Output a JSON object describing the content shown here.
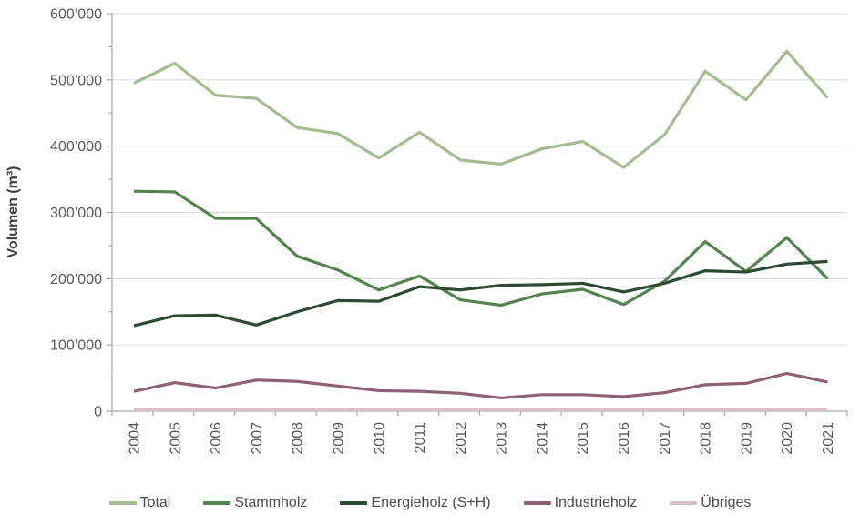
{
  "colors": {
    "background": "#ffffff",
    "gridline": "#d9d9d9",
    "axis": "#a6a6a6",
    "tick_text": "#595959",
    "axis_title_text": "#3f3f3f"
  },
  "chart_data": {
    "type": "line",
    "title": "",
    "xlabel": "",
    "ylabel": "Volumen (m³)",
    "ylim": [
      0,
      600000
    ],
    "y_tick_interval": 100000,
    "y_minor_tick_interval": 50000,
    "y_tick_labels": [
      "0",
      "100’000",
      "200’000",
      "300’000",
      "400’000",
      "500’000",
      "600’000"
    ],
    "grid": "horizontal",
    "legend_position": "bottom",
    "x_label_rotation_deg": -90,
    "categories": [
      "2004",
      "2005",
      "2006",
      "2007",
      "2008",
      "2009",
      "2010",
      "2011",
      "2012",
      "2013",
      "2014",
      "2015",
      "2016",
      "2017",
      "2018",
      "2019",
      "2020",
      "2021"
    ],
    "series": [
      {
        "name": "Total",
        "color": "#a5bb90",
        "values": [
          495000,
          525000,
          477000,
          472000,
          428000,
          419000,
          382000,
          421000,
          379000,
          373000,
          396000,
          407000,
          368000,
          417000,
          513000,
          470000,
          543000,
          473000
        ]
      },
      {
        "name": "Stammholz",
        "color": "#53834e",
        "values": [
          332000,
          331000,
          291000,
          291000,
          234000,
          213000,
          183000,
          204000,
          168000,
          160000,
          177000,
          184000,
          161000,
          196000,
          256000,
          211000,
          262000,
          200000
        ]
      },
      {
        "name": "Energieholz (S+H)",
        "color": "#2d4a32",
        "values": [
          129000,
          144000,
          145000,
          130000,
          150000,
          167000,
          166000,
          188000,
          183000,
          190000,
          191000,
          193000,
          180000,
          193000,
          212000,
          210000,
          222000,
          226000
        ]
      },
      {
        "name": "Industrieholz",
        "color": "#8e6177",
        "values": [
          30000,
          43000,
          35000,
          47000,
          45000,
          38000,
          31000,
          30000,
          27000,
          20000,
          25000,
          25000,
          22000,
          28000,
          40000,
          42000,
          57000,
          44000
        ]
      },
      {
        "name": "Übriges",
        "color": "#d6c2c4",
        "values": [
          2000,
          2000,
          2000,
          2000,
          2000,
          2000,
          2000,
          2000,
          2000,
          2000,
          2000,
          2000,
          2000,
          2000,
          2000,
          2000,
          2000,
          2000
        ]
      }
    ]
  }
}
